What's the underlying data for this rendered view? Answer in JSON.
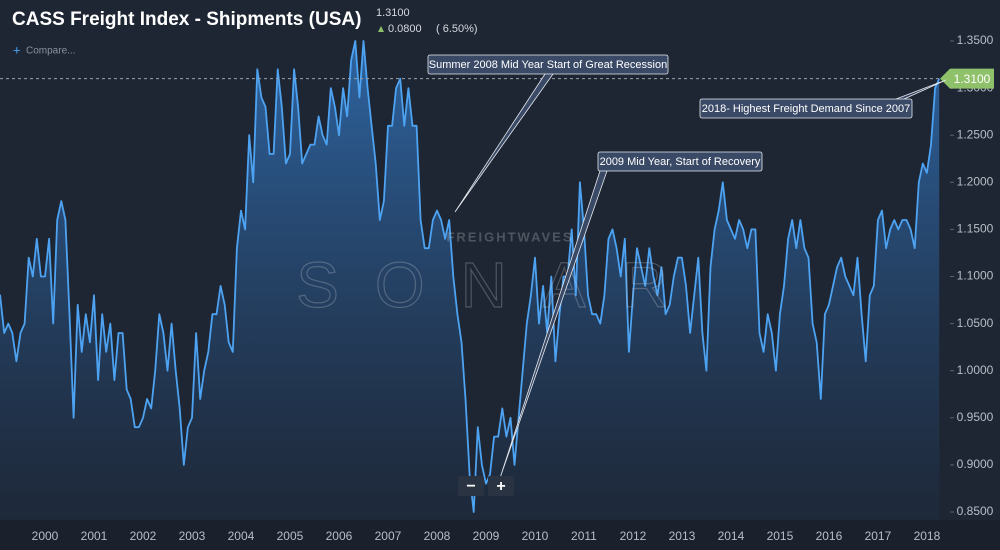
{
  "chart_data": {
    "type": "line",
    "title": "CASS Freight Index - Shipments (USA)",
    "current": {
      "value": 1.31,
      "label": "1.3100"
    },
    "change": "0.0800",
    "change_pct": "( 6.50%)",
    "compare": "Compare...",
    "watermark": {
      "brand": "FREIGHTWAVES",
      "product": "SONAR"
    },
    "zoom": [
      "−",
      "+"
    ],
    "annotations": [
      "Summer 2008 Mid Year Start of Great Recession",
      "2009 Mid Year, Start of Recovery",
      "2018- Highest Freight Demand Since 2007"
    ],
    "color": "#4da3f2",
    "categories": [
      null,
      null,
      null,
      null,
      null,
      null,
      null,
      null,
      null,
      null,
      null,
      null,
      "2000",
      null,
      null,
      null,
      null,
      null,
      null,
      null,
      null,
      null,
      null,
      null,
      "2001",
      null,
      null,
      null,
      null,
      null,
      null,
      null,
      null,
      null,
      null,
      null,
      "2002",
      null,
      null,
      null,
      null,
      null,
      null,
      null,
      null,
      null,
      null,
      null,
      "2003",
      null,
      null,
      null,
      null,
      null,
      null,
      null,
      null,
      null,
      null,
      null,
      "2004",
      null,
      null,
      null,
      null,
      null,
      null,
      null,
      null,
      null,
      null,
      null,
      "2005",
      null,
      null,
      null,
      null,
      null,
      null,
      null,
      null,
      null,
      null,
      null,
      "2006",
      null,
      null,
      null,
      null,
      null,
      null,
      null,
      null,
      null,
      null,
      null,
      "2007",
      null,
      null,
      null,
      null,
      null,
      null,
      null,
      null,
      null,
      null,
      null,
      "2008",
      null,
      null,
      null,
      null,
      null,
      null,
      null,
      null,
      null,
      null,
      null,
      "2009",
      null,
      null,
      null,
      null,
      null,
      null,
      null,
      null,
      null,
      null,
      null,
      "2010",
      null,
      null,
      null,
      null,
      null,
      null,
      null,
      null,
      null,
      null,
      null,
      "2011",
      null,
      null,
      null,
      null,
      null,
      null,
      null,
      null,
      null,
      null,
      null,
      "2012",
      null,
      null,
      null,
      null,
      null,
      null,
      null,
      null,
      null,
      null,
      null,
      "2013",
      null,
      null,
      null,
      null,
      null,
      null,
      null,
      null,
      null,
      null,
      null,
      "2014",
      null,
      null,
      null,
      null,
      null,
      null,
      null,
      null,
      null,
      null,
      null,
      "2015",
      null,
      null,
      null,
      null,
      null,
      null,
      null,
      null,
      null,
      null,
      null,
      "2016",
      null,
      null,
      null,
      null,
      null,
      null,
      null,
      null,
      null,
      null,
      null,
      "2017",
      null,
      null,
      null,
      null,
      null,
      null,
      null,
      null,
      null,
      null,
      null,
      "2018",
      null,
      null,
      null
    ],
    "values": [
      1.06,
      1.08,
      1.04,
      1.05,
      1.04,
      1.01,
      1.04,
      1.05,
      1.12,
      1.1,
      1.14,
      1.1,
      1.1,
      1.14,
      1.05,
      1.16,
      1.18,
      1.16,
      1.06,
      0.95,
      1.07,
      1.02,
      1.06,
      1.03,
      1.08,
      0.99,
      1.06,
      1.02,
      1.05,
      0.99,
      1.04,
      1.04,
      0.98,
      0.97,
      0.94,
      0.94,
      0.95,
      0.97,
      0.96,
      1.0,
      1.06,
      1.04,
      1.0,
      1.05,
      1.0,
      0.96,
      0.9,
      0.94,
      0.95,
      1.04,
      0.97,
      1.0,
      1.02,
      1.06,
      1.06,
      1.09,
      1.07,
      1.03,
      1.02,
      1.13,
      1.17,
      1.15,
      1.25,
      1.2,
      1.32,
      1.29,
      1.28,
      1.23,
      1.23,
      1.32,
      1.28,
      1.22,
      1.23,
      1.32,
      1.28,
      1.22,
      1.23,
      1.24,
      1.24,
      1.27,
      1.25,
      1.24,
      1.3,
      1.28,
      1.25,
      1.3,
      1.27,
      1.33,
      1.35,
      1.29,
      1.35,
      1.3,
      1.26,
      1.22,
      1.16,
      1.18,
      1.26,
      1.26,
      1.3,
      1.31,
      1.26,
      1.3,
      1.26,
      1.26,
      1.16,
      1.13,
      1.13,
      1.16,
      1.17,
      1.16,
      1.14,
      1.16,
      1.1,
      1.06,
      1.03,
      0.97,
      0.89,
      0.85,
      0.94,
      0.9,
      0.88,
      0.89,
      0.93,
      0.93,
      0.96,
      0.93,
      0.95,
      0.9,
      0.95,
      1.0,
      1.05,
      1.08,
      1.12,
      1.05,
      1.09,
      1.04,
      1.1,
      1.01,
      1.06,
      1.1,
      1.1,
      1.15,
      1.08,
      1.2,
      1.15,
      1.08,
      1.06,
      1.06,
      1.05,
      1.08,
      1.14,
      1.15,
      1.13,
      1.1,
      1.14,
      1.02,
      1.08,
      1.13,
      1.11,
      1.09,
      1.13,
      1.1,
      1.08,
      1.11,
      1.06,
      1.07,
      1.1,
      1.12,
      1.12,
      1.09,
      1.04,
      1.08,
      1.12,
      1.04,
      1.0,
      1.11,
      1.15,
      1.17,
      1.2,
      1.16,
      1.15,
      1.14,
      1.16,
      1.15,
      1.13,
      1.15,
      1.15,
      1.04,
      1.02,
      1.06,
      1.04,
      1.0,
      1.06,
      1.09,
      1.14,
      1.16,
      1.13,
      1.16,
      1.13,
      1.12,
      1.05,
      1.03,
      0.97,
      1.06,
      1.07,
      1.09,
      1.11,
      1.12,
      1.1,
      1.09,
      1.08,
      1.12,
      1.06,
      1.01,
      1.08,
      1.09,
      1.16,
      1.17,
      1.13,
      1.15,
      1.16,
      1.15,
      1.16,
      1.16,
      1.15,
      1.13,
      1.2,
      1.22,
      1.21,
      1.24,
      1.3,
      1.31
    ],
    "ylim": [
      0.85,
      1.35
    ],
    "yticks": [
      {
        "value": 0.85,
        "label": "0.8500"
      },
      {
        "value": 0.9,
        "label": "0.9000"
      },
      {
        "value": 0.95,
        "label": "0.9500"
      },
      {
        "value": 1.0,
        "label": "1.0000"
      },
      {
        "value": 1.05,
        "label": "1.0500"
      },
      {
        "value": 1.1,
        "label": "1.1000"
      },
      {
        "value": 1.15,
        "label": "1.1500"
      },
      {
        "value": 1.2,
        "label": "1.2000"
      },
      {
        "value": 1.25,
        "label": "1.2500"
      },
      {
        "value": 1.3,
        "label": "1.3000"
      },
      {
        "value": 1.35,
        "label": "1.3500"
      }
    ]
  }
}
